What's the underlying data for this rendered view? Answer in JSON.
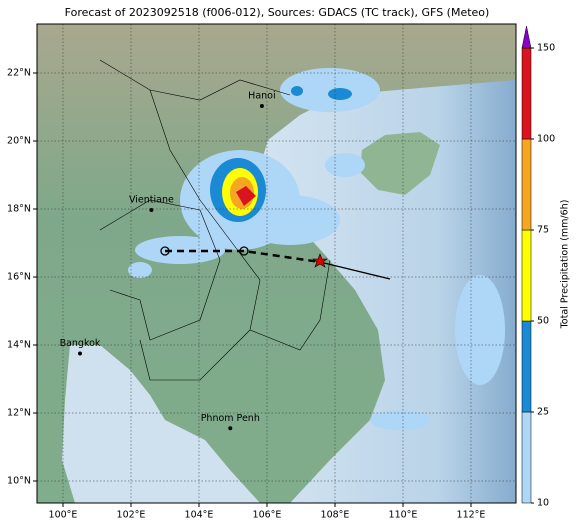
{
  "title": "Forecast of 2023092518 (f006-012), Sources: GDACS (TC track), GFS (Meteo)",
  "map": {
    "lon_ticks": [
      {
        "value": 100,
        "label": "100°E"
      },
      {
        "value": 102,
        "label": "102°E"
      },
      {
        "value": 104,
        "label": "104°E"
      },
      {
        "value": 106,
        "label": "106°E"
      },
      {
        "value": 108,
        "label": "108°E"
      },
      {
        "value": 110,
        "label": "110°E"
      },
      {
        "value": 112,
        "label": "112°E"
      }
    ],
    "lat_ticks": [
      {
        "value": 10,
        "label": "10°N"
      },
      {
        "value": 12,
        "label": "12°N"
      },
      {
        "value": 14,
        "label": "14°N"
      },
      {
        "value": 16,
        "label": "16°N"
      },
      {
        "value": 18,
        "label": "18°N"
      },
      {
        "value": 20,
        "label": "20°N"
      },
      {
        "value": 22,
        "label": "22°N"
      }
    ],
    "cities": [
      {
        "name": "Hanoi",
        "lon": 105.85,
        "lat": 21.03
      },
      {
        "name": "Vientiane",
        "lon": 102.6,
        "lat": 17.97
      },
      {
        "name": "Bangkok",
        "lon": 100.5,
        "lat": 13.75
      },
      {
        "name": "Phnom Penh",
        "lon": 104.92,
        "lat": 11.55
      }
    ]
  },
  "colorbar": {
    "label": "Total Precipitation (mm/6h)",
    "levels": [
      10,
      25,
      50,
      75,
      100,
      150
    ],
    "colors": [
      "#aed6f7",
      "#1a8ad4",
      "#ffff00",
      "#f5a623",
      "#d9141e"
    ],
    "extend_color": "#8a00c8"
  }
}
